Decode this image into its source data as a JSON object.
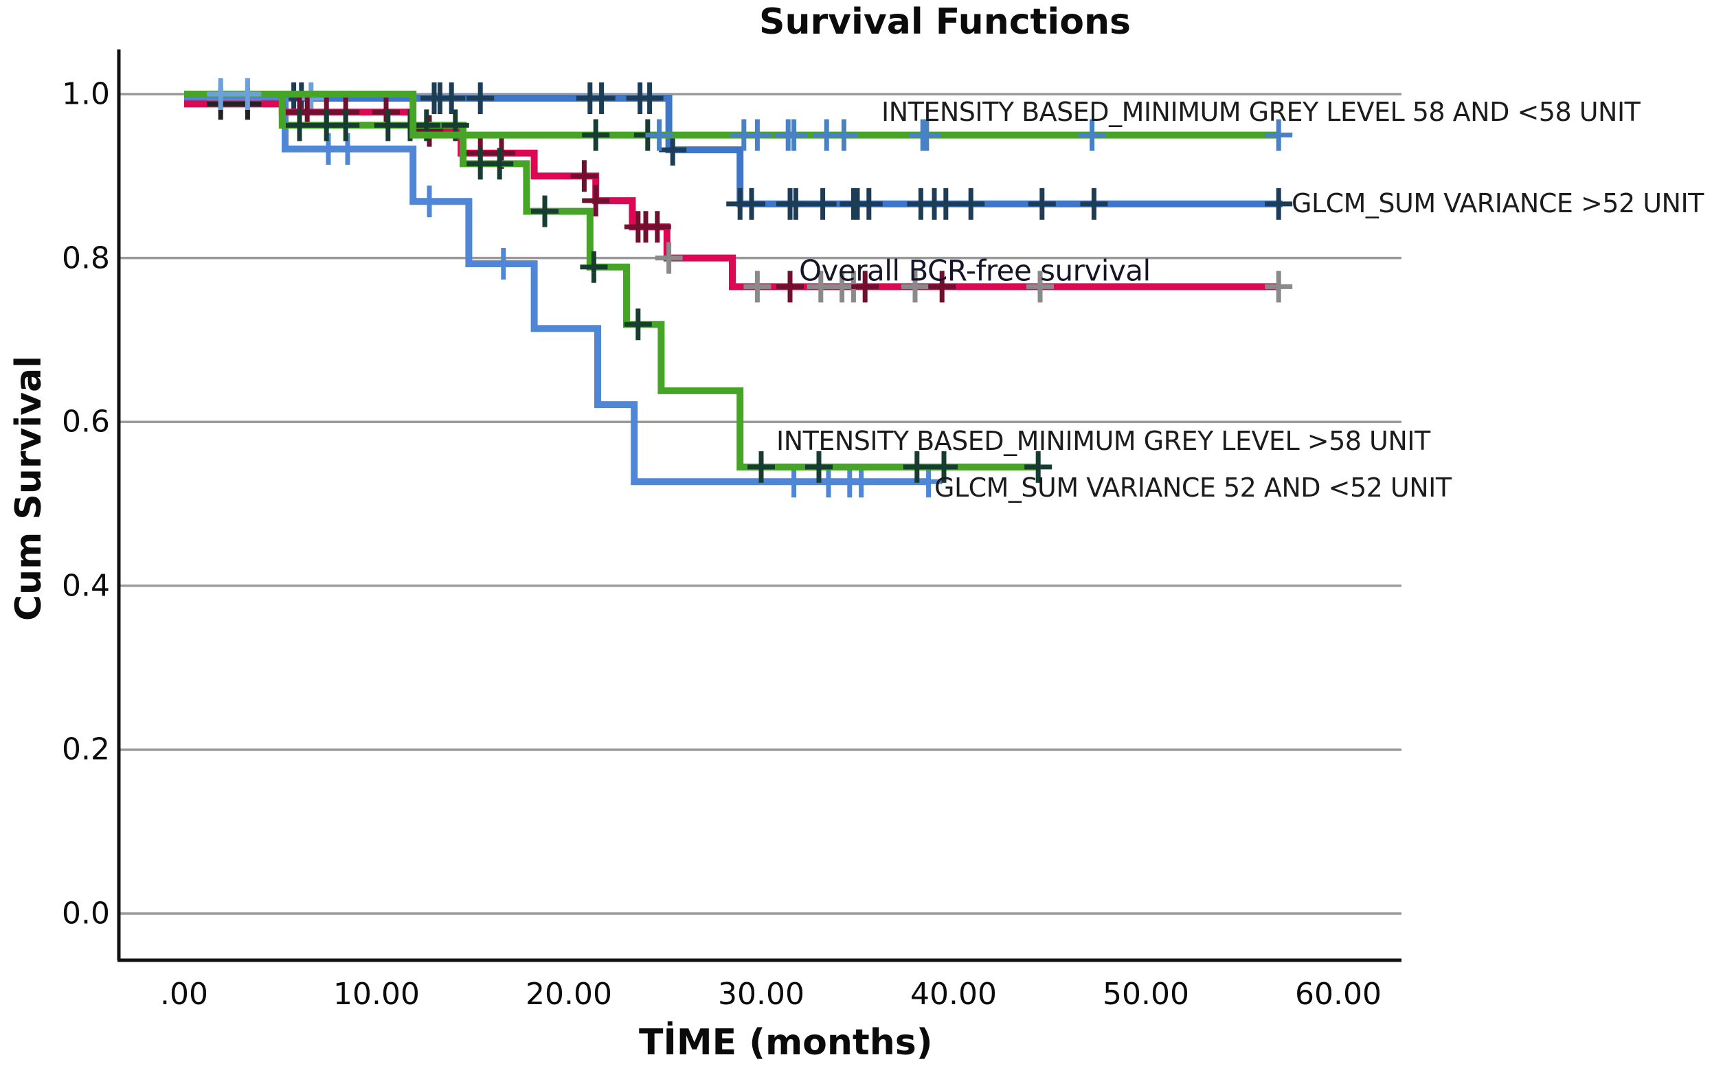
{
  "chart_data": {
    "type": "line",
    "subtype": "kaplan-meier-step",
    "title": "Survival Functions",
    "xlabel": "TİME (months)",
    "ylabel": "Cum Survival",
    "xlim": [
      -3.4,
      63.3
    ],
    "ylim": [
      -0.057,
      1.054
    ],
    "grid": "horizontal-only",
    "grid_color": "#9a9a9a",
    "axis_color": "#111111",
    "background_color": "#ffffff",
    "legend_position": "labels-next-to-curves",
    "x_ticks": [
      {
        "t": 0,
        "label": ".00"
      },
      {
        "t": 10,
        "label": "10.00"
      },
      {
        "t": 20,
        "label": "20.00"
      },
      {
        "t": 30,
        "label": "30.00"
      },
      {
        "t": 40,
        "label": "40.00"
      },
      {
        "t": 50,
        "label": "50.00"
      },
      {
        "t": 60,
        "label": "60.00"
      }
    ],
    "y_ticks": [
      {
        "v": 1.0,
        "label": "1.0"
      },
      {
        "v": 0.8,
        "label": "0.8"
      },
      {
        "v": 0.6,
        "label": "0.6"
      },
      {
        "v": 0.4,
        "label": "0.4"
      },
      {
        "v": 0.2,
        "label": "0.2"
      },
      {
        "v": 0.0,
        "label": "0.0"
      }
    ],
    "series": [
      {
        "id": "glcm-sum-variance-gt52",
        "label": "GLCM_SUM VARIANCE >52 UNIT",
        "color": "#3e76c9",
        "tick_color": "#1d3c55",
        "steps": [
          [
            0,
            0.995
          ],
          [
            25.2,
            0.995
          ],
          [
            25.2,
            0.932
          ],
          [
            28.9,
            0.932
          ],
          [
            28.9,
            0.866
          ],
          [
            57.1,
            0.866
          ]
        ],
        "censors": [
          [
            1.9,
            0.995,
            "#6ea0dc"
          ],
          [
            3.3,
            0.995,
            "#6ea0dc"
          ],
          [
            5.7,
            0.995
          ],
          [
            6.1,
            0.995
          ],
          [
            6.6,
            0.995,
            "#6ea0dc"
          ],
          [
            13.0,
            0.995
          ],
          [
            13.3,
            0.995
          ],
          [
            13.9,
            0.995
          ],
          [
            15.4,
            0.995
          ],
          [
            21.1,
            0.995
          ],
          [
            21.7,
            0.995
          ],
          [
            23.7,
            0.995
          ],
          [
            24.2,
            0.995
          ],
          [
            25.4,
            0.932
          ],
          [
            28.9,
            0.866
          ],
          [
            29.5,
            0.866
          ],
          [
            31.5,
            0.866
          ],
          [
            31.8,
            0.866
          ],
          [
            33.2,
            0.866
          ],
          [
            34.8,
            0.866
          ],
          [
            35.0,
            0.866
          ],
          [
            35.6,
            0.866
          ],
          [
            38.3,
            0.866
          ],
          [
            39.0,
            0.866
          ],
          [
            39.6,
            0.866
          ],
          [
            40.9,
            0.866
          ],
          [
            44.6,
            0.866
          ],
          [
            47.3,
            0.866
          ],
          [
            56.9,
            0.866
          ]
        ]
      },
      {
        "id": "glcm-sum-variance-le52",
        "label": "GLCM_SUM VARIANCE 52 AND <52 UNIT",
        "color": "#4f86d6",
        "tick_color": "#4f86d6",
        "steps": [
          [
            0,
            0.997
          ],
          [
            5.25,
            0.997
          ],
          [
            5.25,
            0.933
          ],
          [
            11.9,
            0.933
          ],
          [
            11.9,
            0.869
          ],
          [
            14.8,
            0.869
          ],
          [
            14.8,
            0.793
          ],
          [
            18.2,
            0.793
          ],
          [
            18.2,
            0.714
          ],
          [
            21.5,
            0.714
          ],
          [
            21.5,
            0.621
          ],
          [
            23.4,
            0.621
          ],
          [
            23.4,
            0.527
          ],
          [
            38.75,
            0.527
          ]
        ],
        "censors": [
          [
            7.5,
            0.933
          ],
          [
            8.5,
            0.933
          ],
          [
            12.75,
            0.869
          ],
          [
            16.6,
            0.793
          ],
          [
            31.7,
            0.527
          ],
          [
            33.5,
            0.527
          ],
          [
            34.6,
            0.527
          ],
          [
            35.2,
            0.527
          ],
          [
            38.7,
            0.527
          ]
        ]
      },
      {
        "id": "overall-bcr-free-survival",
        "label": "Overall BCR-free survival",
        "color": "#dd0853",
        "tick_color": "#70102f",
        "steps": [
          [
            0,
            0.988
          ],
          [
            5.1,
            0.988
          ],
          [
            5.1,
            0.978
          ],
          [
            11.8,
            0.978
          ],
          [
            11.8,
            0.955
          ],
          [
            14.4,
            0.955
          ],
          [
            14.4,
            0.928
          ],
          [
            18.2,
            0.928
          ],
          [
            18.2,
            0.9
          ],
          [
            21.4,
            0.9
          ],
          [
            21.4,
            0.87
          ],
          [
            23.3,
            0.87
          ],
          [
            23.3,
            0.838
          ],
          [
            25.1,
            0.838
          ],
          [
            25.1,
            0.8
          ],
          [
            28.5,
            0.8
          ],
          [
            28.5,
            0.765
          ],
          [
            56.9,
            0.765
          ]
        ],
        "censors": [
          [
            1.9,
            0.988,
            "#222222"
          ],
          [
            3.3,
            0.988,
            "#222222"
          ],
          [
            6.0,
            0.978
          ],
          [
            6.4,
            0.978
          ],
          [
            7.4,
            0.978
          ],
          [
            8.4,
            0.978
          ],
          [
            10.5,
            0.978
          ],
          [
            12.75,
            0.955
          ],
          [
            15.4,
            0.928
          ],
          [
            16.5,
            0.928
          ],
          [
            20.8,
            0.9
          ],
          [
            21.4,
            0.87
          ],
          [
            23.6,
            0.838
          ],
          [
            24.0,
            0.838
          ],
          [
            24.6,
            0.838
          ],
          [
            25.2,
            0.8,
            "#8a8a8a"
          ],
          [
            29.8,
            0.765,
            "#8a8a8a"
          ],
          [
            31.5,
            0.765
          ],
          [
            33.1,
            0.765,
            "#8a8a8a"
          ],
          [
            34.2,
            0.765,
            "#8a8a8a"
          ],
          [
            34.8,
            0.765,
            "#8a8a8a"
          ],
          [
            35.4,
            0.765
          ],
          [
            38.0,
            0.765,
            "#8a8a8a"
          ],
          [
            39.4,
            0.765
          ],
          [
            44.5,
            0.765,
            "#8a8a8a"
          ],
          [
            56.9,
            0.765,
            "#8a8a8a"
          ]
        ]
      },
      {
        "id": "intensity-min-grey-gt58",
        "label": "INTENSITY BASED_MINIMUM GREY LEVEL >58 UNIT",
        "color": "#46a426",
        "tick_color": "#173d33",
        "steps": [
          [
            0,
            1.0
          ],
          [
            5.1,
            1.0
          ],
          [
            5.1,
            0.962
          ],
          [
            14.5,
            0.962
          ],
          [
            14.5,
            0.915
          ],
          [
            17.8,
            0.915
          ],
          [
            17.8,
            0.857
          ],
          [
            21.1,
            0.857
          ],
          [
            21.1,
            0.789
          ],
          [
            23.0,
            0.789
          ],
          [
            23.0,
            0.719
          ],
          [
            24.8,
            0.719
          ],
          [
            24.8,
            0.638
          ],
          [
            28.9,
            0.638
          ],
          [
            28.9,
            0.545
          ],
          [
            44.5,
            0.545
          ]
        ],
        "censors": [
          [
            6.0,
            0.962
          ],
          [
            7.4,
            0.962
          ],
          [
            8.4,
            0.962
          ],
          [
            10.6,
            0.962
          ],
          [
            11.75,
            0.962
          ],
          [
            12.6,
            0.962
          ],
          [
            14.1,
            0.962
          ],
          [
            15.4,
            0.915
          ],
          [
            16.4,
            0.915
          ],
          [
            18.75,
            0.857
          ],
          [
            21.3,
            0.789
          ],
          [
            23.6,
            0.719
          ],
          [
            30.0,
            0.545
          ],
          [
            33.0,
            0.545
          ],
          [
            38.1,
            0.545
          ],
          [
            39.5,
            0.545
          ],
          [
            44.4,
            0.545
          ]
        ]
      },
      {
        "id": "intensity-min-grey-le58",
        "label": "INTENSITY BASED_MINIMUM GREY LEVEL 58 AND <58 UNIT",
        "color": "#46a426",
        "tick_color": "#4a80c4",
        "steps": [
          [
            0,
            1.0
          ],
          [
            11.9,
            1.0
          ],
          [
            11.9,
            0.95
          ],
          [
            57.0,
            0.95
          ]
        ],
        "censors": [
          [
            1.9,
            1.0,
            "#6ea0dc"
          ],
          [
            3.3,
            1.0,
            "#6ea0dc"
          ],
          [
            21.4,
            0.95,
            "#173d33"
          ],
          [
            24.1,
            0.95,
            "#173d33"
          ],
          [
            24.7,
            0.95
          ],
          [
            29.1,
            0.95
          ],
          [
            29.8,
            0.95
          ],
          [
            31.4,
            0.95
          ],
          [
            31.7,
            0.95
          ],
          [
            33.4,
            0.95
          ],
          [
            34.3,
            0.95
          ],
          [
            38.4,
            0.95
          ],
          [
            38.6,
            0.95
          ],
          [
            47.2,
            0.95
          ],
          [
            56.9,
            0.95
          ]
        ]
      }
    ]
  }
}
